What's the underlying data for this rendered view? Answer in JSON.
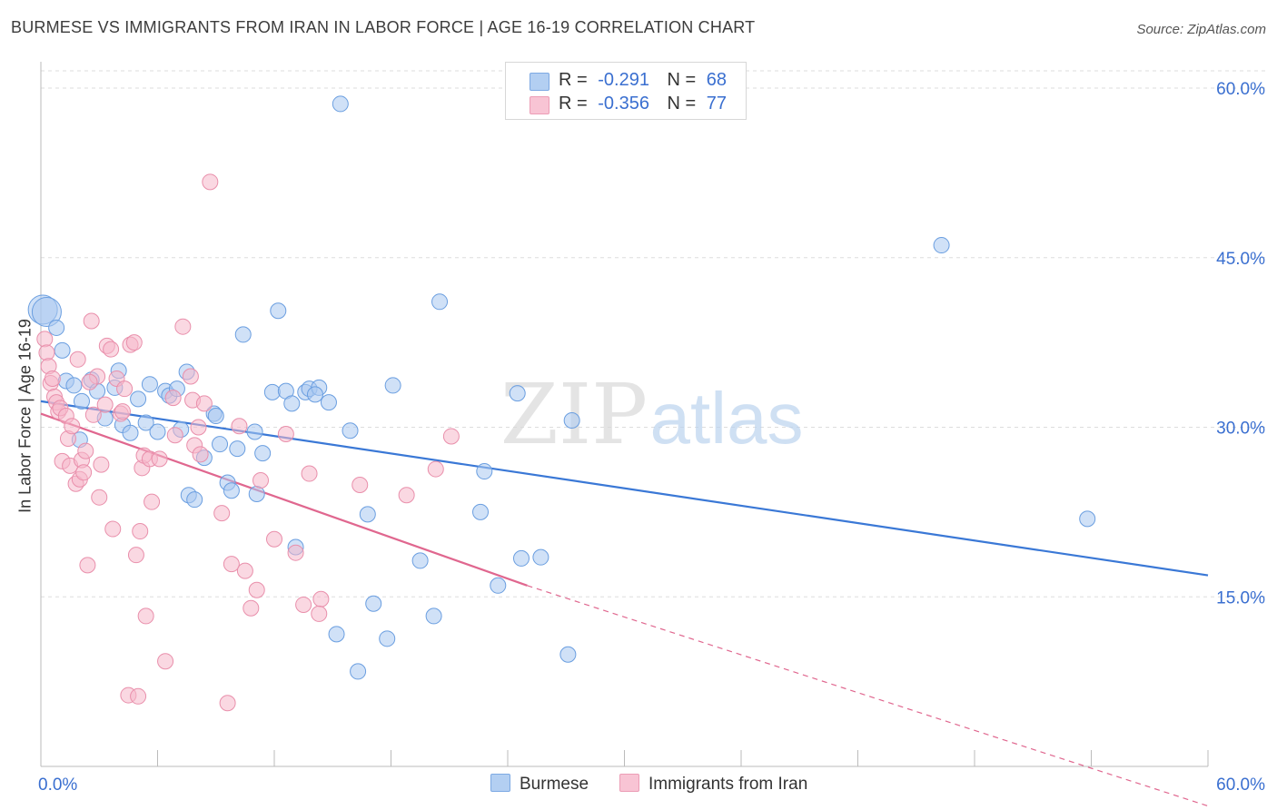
{
  "header": {
    "title": "BURMESE VS IMMIGRANTS FROM IRAN IN LABOR FORCE | AGE 16-19 CORRELATION CHART",
    "source": "Source: ZipAtlas.com"
  },
  "legend": {
    "r_label": "R =",
    "n_label": "N =",
    "rows": [
      {
        "r": "-0.291",
        "n": "68"
      },
      {
        "r": "-0.356",
        "n": "77"
      }
    ]
  },
  "watermark": {
    "zip": "ZIP",
    "atlas": "atlas"
  },
  "colors": {
    "burmese_fill": "#a9c8f0",
    "burmese_stroke": "#6a9ee0",
    "burmese_line": "#3a78d6",
    "iran_fill": "#f6b8cb",
    "iran_stroke": "#e98fab",
    "iran_line": "#e0678f",
    "axis_tick_text": "#3a6fd0",
    "grid": "#dddddd"
  },
  "chart_data": {
    "type": "scatter",
    "title": "BURMESE VS IMMIGRANTS FROM IRAN IN LABOR FORCE | AGE 16-19 CORRELATION CHART",
    "xlabel": "",
    "ylabel": "In Labor Force | Age 16-19",
    "xlim": [
      0,
      60
    ],
    "ylim": [
      0,
      60
    ],
    "x_tick_labels": [
      "0.0%",
      "60.0%"
    ],
    "y_ticks": [
      15,
      30,
      45,
      60
    ],
    "y_tick_labels": [
      "15.0%",
      "30.0%",
      "45.0%",
      "60.0%"
    ],
    "grid": true,
    "legend_position": "top-center",
    "series": [
      {
        "name": "Burmese",
        "r": -0.291,
        "n": 68,
        "trend": {
          "x0": 0,
          "y0": 32.3,
          "x1": 60,
          "y1": 16.9
        },
        "points": [
          [
            0.1,
            40.4
          ],
          [
            0.3,
            40.2
          ],
          [
            0.8,
            38.8
          ],
          [
            1.1,
            36.8
          ],
          [
            1.3,
            34.1
          ],
          [
            1.7,
            33.7
          ],
          [
            2.1,
            32.3
          ],
          [
            2.6,
            34.2
          ],
          [
            2.9,
            33.2
          ],
          [
            3.3,
            30.8
          ],
          [
            4.0,
            35.0
          ],
          [
            4.2,
            30.2
          ],
          [
            4.6,
            29.5
          ],
          [
            5.0,
            32.5
          ],
          [
            5.4,
            30.4
          ],
          [
            5.6,
            33.8
          ],
          [
            6.0,
            29.6
          ],
          [
            6.4,
            33.2
          ],
          [
            6.6,
            32.8
          ],
          [
            7.0,
            33.4
          ],
          [
            7.2,
            29.8
          ],
          [
            7.5,
            34.9
          ],
          [
            7.6,
            24.0
          ],
          [
            7.9,
            23.6
          ],
          [
            8.4,
            27.3
          ],
          [
            8.9,
            31.2
          ],
          [
            9.2,
            28.5
          ],
          [
            9.6,
            25.1
          ],
          [
            9.8,
            24.4
          ],
          [
            10.1,
            28.1
          ],
          [
            10.4,
            38.2
          ],
          [
            11.0,
            29.6
          ],
          [
            11.1,
            24.1
          ],
          [
            11.4,
            27.7
          ],
          [
            11.9,
            33.1
          ],
          [
            12.2,
            40.3
          ],
          [
            12.6,
            33.2
          ],
          [
            12.9,
            32.1
          ],
          [
            13.1,
            19.4
          ],
          [
            13.6,
            33.1
          ],
          [
            13.8,
            33.4
          ],
          [
            14.3,
            33.5
          ],
          [
            14.8,
            32.2
          ],
          [
            15.2,
            11.7
          ],
          [
            15.4,
            58.6
          ],
          [
            15.9,
            29.7
          ],
          [
            16.3,
            8.4
          ],
          [
            16.8,
            22.3
          ],
          [
            17.1,
            14.4
          ],
          [
            17.8,
            11.3
          ],
          [
            18.1,
            33.7
          ],
          [
            19.5,
            18.2
          ],
          [
            20.2,
            13.3
          ],
          [
            20.5,
            41.1
          ],
          [
            22.6,
            22.5
          ],
          [
            22.8,
            26.1
          ],
          [
            23.5,
            16.0
          ],
          [
            24.5,
            33.0
          ],
          [
            24.7,
            18.4
          ],
          [
            25.7,
            18.5
          ],
          [
            27.1,
            9.9
          ],
          [
            27.3,
            30.6
          ],
          [
            46.3,
            46.1
          ],
          [
            53.8,
            21.9
          ],
          [
            3.8,
            33.5
          ],
          [
            2.0,
            28.9
          ],
          [
            14.1,
            32.9
          ],
          [
            9.0,
            31.0
          ]
        ]
      },
      {
        "name": "Immigrants from Iran",
        "r": -0.356,
        "n": 77,
        "trend": {
          "x0": 0,
          "y0": 31.2,
          "x1": 25.0,
          "y1": 16.0
        },
        "trend_dashed": {
          "x0": 25.0,
          "y0": 16.0,
          "x1": 60,
          "y1": -3.5
        },
        "points": [
          [
            0.2,
            37.8
          ],
          [
            0.3,
            36.6
          ],
          [
            0.4,
            35.4
          ],
          [
            0.5,
            33.9
          ],
          [
            0.6,
            34.3
          ],
          [
            0.7,
            32.7
          ],
          [
            0.8,
            32.2
          ],
          [
            0.9,
            31.4
          ],
          [
            1.0,
            31.7
          ],
          [
            1.1,
            27.0
          ],
          [
            1.3,
            31.0
          ],
          [
            1.4,
            29.0
          ],
          [
            1.5,
            26.6
          ],
          [
            1.6,
            30.1
          ],
          [
            1.8,
            25.0
          ],
          [
            1.9,
            36.0
          ],
          [
            2.0,
            25.4
          ],
          [
            2.1,
            27.1
          ],
          [
            2.2,
            26.0
          ],
          [
            2.3,
            27.9
          ],
          [
            2.4,
            17.8
          ],
          [
            2.6,
            39.4
          ],
          [
            2.7,
            31.1
          ],
          [
            2.9,
            34.5
          ],
          [
            3.0,
            23.8
          ],
          [
            3.1,
            26.7
          ],
          [
            3.3,
            32.0
          ],
          [
            3.4,
            37.2
          ],
          [
            3.6,
            36.9
          ],
          [
            3.7,
            21.0
          ],
          [
            3.9,
            34.3
          ],
          [
            4.1,
            31.2
          ],
          [
            4.2,
            31.4
          ],
          [
            4.3,
            33.4
          ],
          [
            4.5,
            6.3
          ],
          [
            4.6,
            37.3
          ],
          [
            4.8,
            37.5
          ],
          [
            4.9,
            18.7
          ],
          [
            5.0,
            6.2
          ],
          [
            5.1,
            20.8
          ],
          [
            5.2,
            26.4
          ],
          [
            5.3,
            27.5
          ],
          [
            5.4,
            13.3
          ],
          [
            5.6,
            27.2
          ],
          [
            5.7,
            23.4
          ],
          [
            6.4,
            9.3
          ],
          [
            6.8,
            32.6
          ],
          [
            6.9,
            29.3
          ],
          [
            7.3,
            38.9
          ],
          [
            7.7,
            34.5
          ],
          [
            7.8,
            32.4
          ],
          [
            7.9,
            28.4
          ],
          [
            8.1,
            30.0
          ],
          [
            8.2,
            27.6
          ],
          [
            8.4,
            32.1
          ],
          [
            8.7,
            51.7
          ],
          [
            9.3,
            22.4
          ],
          [
            9.6,
            5.6
          ],
          [
            9.8,
            17.9
          ],
          [
            10.2,
            30.1
          ],
          [
            10.5,
            17.3
          ],
          [
            11.1,
            15.6
          ],
          [
            11.3,
            25.3
          ],
          [
            12.0,
            20.1
          ],
          [
            12.6,
            29.4
          ],
          [
            13.1,
            18.9
          ],
          [
            13.5,
            14.3
          ],
          [
            13.8,
            25.9
          ],
          [
            14.4,
            14.8
          ],
          [
            14.3,
            13.5
          ],
          [
            16.4,
            24.9
          ],
          [
            18.8,
            24.0
          ],
          [
            20.3,
            26.3
          ],
          [
            21.1,
            29.2
          ],
          [
            10.8,
            14.0
          ],
          [
            6.1,
            27.2
          ],
          [
            2.5,
            34.0
          ]
        ]
      }
    ]
  }
}
